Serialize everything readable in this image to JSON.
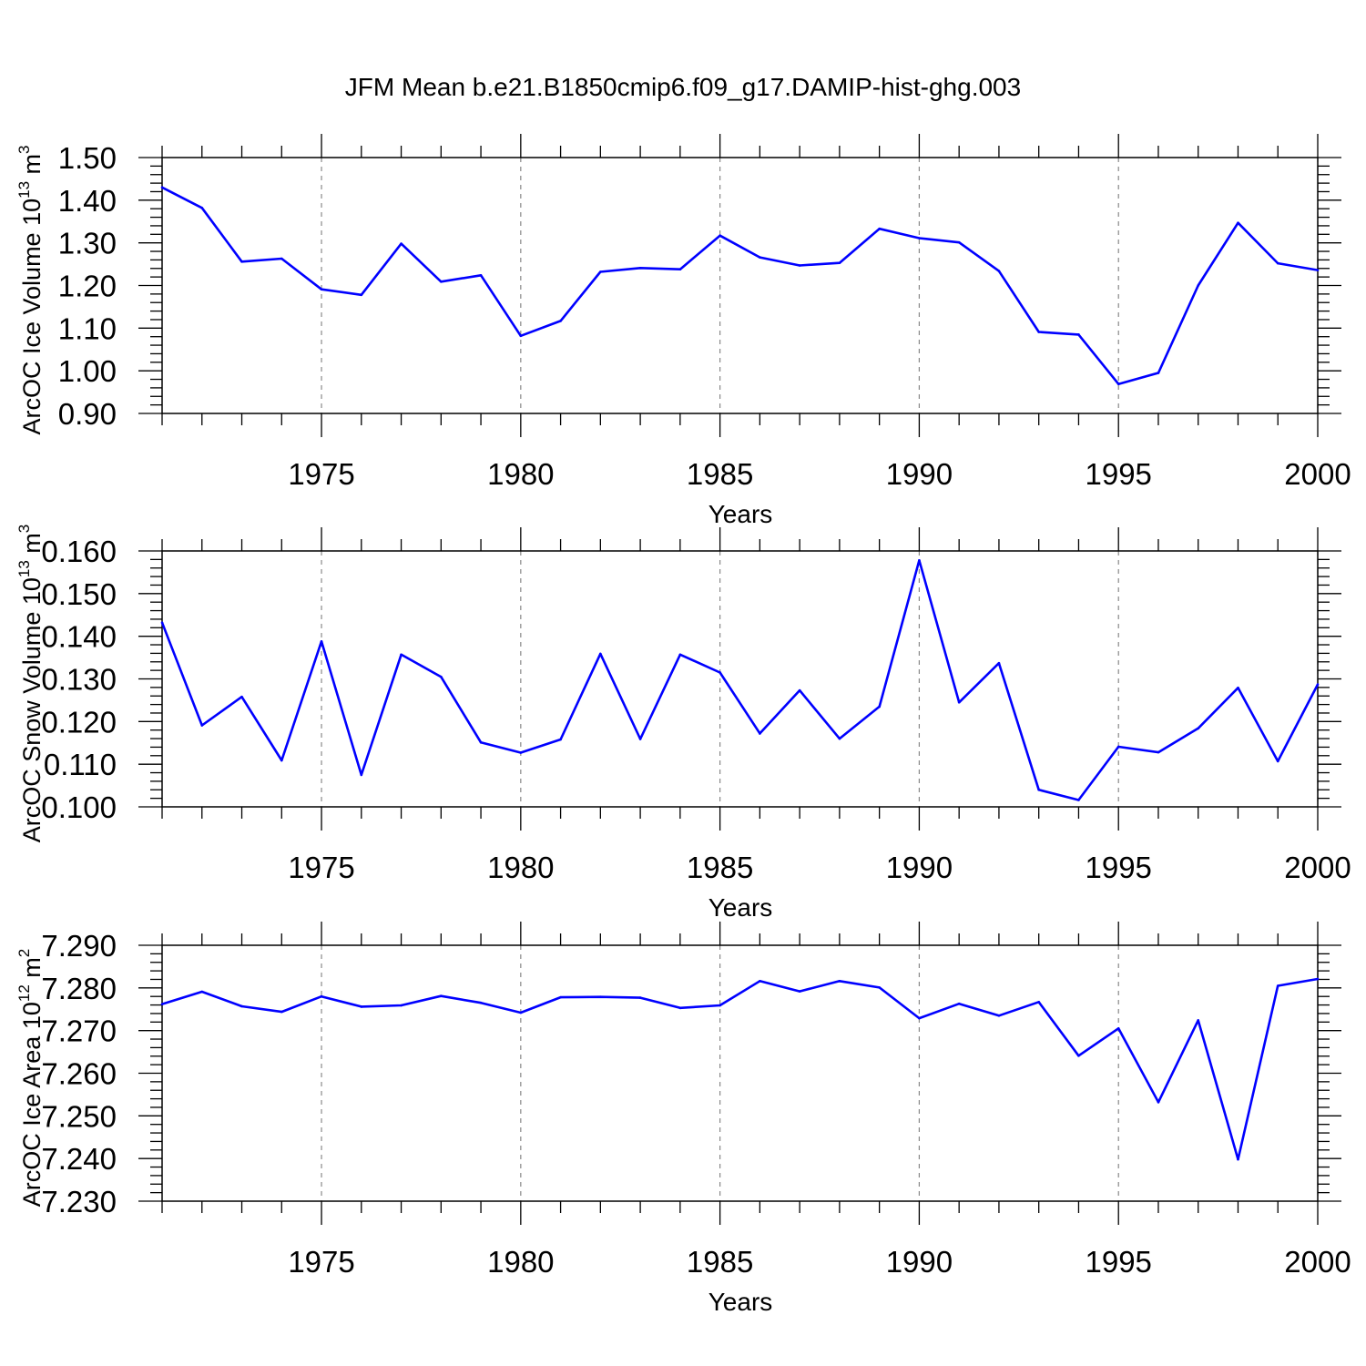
{
  "title": "JFM Mean b.e21.B1850cmip6.f09_g17.DAMIP-hist-ghg.003",
  "line_color": "#0000ff",
  "chart_data": [
    {
      "type": "line",
      "xlabel": "Years",
      "ylabel": "ArcOC Ice Volume 10",
      "ylabel_exp": "13",
      "ylabel_unit": " m",
      "ylabel_unit_exp": "3",
      "xlim": [
        1971,
        2000
      ],
      "ylim": [
        0.9,
        1.5
      ],
      "x_ticks": [
        1975,
        1980,
        1985,
        1990,
        1995,
        2000
      ],
      "x_tick_labels": [
        "1975",
        "1980",
        "1985",
        "1990",
        "1995",
        "2000"
      ],
      "y_ticks": [
        0.9,
        1.0,
        1.1,
        1.2,
        1.3,
        1.4,
        1.5
      ],
      "y_tick_labels": [
        "0.90",
        "1.00",
        "1.10",
        "1.20",
        "1.30",
        "1.40",
        "1.50"
      ],
      "grid": "vertical dashed at major x ticks",
      "x": [
        1971,
        1972,
        1973,
        1974,
        1975,
        1976,
        1977,
        1978,
        1979,
        1980,
        1981,
        1982,
        1983,
        1984,
        1985,
        1986,
        1987,
        1988,
        1989,
        1990,
        1991,
        1992,
        1993,
        1994,
        1995,
        1996,
        1997,
        1998,
        1999,
        2000
      ],
      "values": [
        1.43,
        1.382,
        1.256,
        1.263,
        1.191,
        1.178,
        1.298,
        1.209,
        1.224,
        1.082,
        1.117,
        1.232,
        1.241,
        1.238,
        1.317,
        1.266,
        1.247,
        1.253,
        1.333,
        1.311,
        1.301,
        1.234,
        1.091,
        1.085,
        0.969,
        0.995,
        1.2,
        1.347,
        1.252,
        1.236
      ]
    },
    {
      "type": "line",
      "xlabel": "Years",
      "ylabel": "ArcOC Snow Volume 10",
      "ylabel_exp": "13",
      "ylabel_unit": " m",
      "ylabel_unit_exp": "3",
      "xlim": [
        1971,
        2000
      ],
      "ylim": [
        0.1,
        0.16
      ],
      "x_ticks": [
        1975,
        1980,
        1985,
        1990,
        1995,
        2000
      ],
      "x_tick_labels": [
        "1975",
        "1980",
        "1985",
        "1990",
        "1995",
        "2000"
      ],
      "y_ticks": [
        0.1,
        0.11,
        0.12,
        0.13,
        0.14,
        0.15,
        0.16
      ],
      "y_tick_labels": [
        "0.100",
        "0.110",
        "0.120",
        "0.130",
        "0.140",
        "0.150",
        "0.160"
      ],
      "grid": "vertical dashed at major x ticks",
      "x": [
        1971,
        1972,
        1973,
        1974,
        1975,
        1976,
        1977,
        1978,
        1979,
        1980,
        1981,
        1982,
        1983,
        1984,
        1985,
        1986,
        1987,
        1988,
        1989,
        1990,
        1991,
        1992,
        1993,
        1994,
        1995,
        1996,
        1997,
        1998,
        1999,
        2000
      ],
      "values": [
        0.1432,
        0.1191,
        0.1258,
        0.1109,
        0.1388,
        0.1075,
        0.1357,
        0.1305,
        0.1151,
        0.1127,
        0.1158,
        0.1359,
        0.1159,
        0.1357,
        0.1315,
        0.1172,
        0.1273,
        0.116,
        0.1235,
        0.1578,
        0.1245,
        0.1337,
        0.104,
        0.1016,
        0.1141,
        0.1128,
        0.1184,
        0.1279,
        0.1107,
        0.1287
      ]
    },
    {
      "type": "line",
      "xlabel": "Years",
      "ylabel": "ArcOC Ice Area 10",
      "ylabel_exp": "12",
      "ylabel_unit": " m",
      "ylabel_unit_exp": "2",
      "xlim": [
        1971,
        2000
      ],
      "ylim": [
        7.23,
        7.29
      ],
      "x_ticks": [
        1975,
        1980,
        1985,
        1990,
        1995,
        2000
      ],
      "x_tick_labels": [
        "1975",
        "1980",
        "1985",
        "1990",
        "1995",
        "2000"
      ],
      "y_ticks": [
        7.23,
        7.24,
        7.25,
        7.26,
        7.27,
        7.28,
        7.29
      ],
      "y_tick_labels": [
        "7.230",
        "7.240",
        "7.250",
        "7.260",
        "7.270",
        "7.280",
        "7.290"
      ],
      "grid": "vertical dashed at major x ticks",
      "x": [
        1971,
        1972,
        1973,
        1974,
        1975,
        1976,
        1977,
        1978,
        1979,
        1980,
        1981,
        1982,
        1983,
        1984,
        1985,
        1986,
        1987,
        1988,
        1989,
        1990,
        1991,
        1992,
        1993,
        1994,
        1995,
        1996,
        1997,
        1998,
        1999,
        2000
      ],
      "values": [
        7.2762,
        7.2791,
        7.2757,
        7.2744,
        7.278,
        7.2756,
        7.2759,
        7.2781,
        7.2765,
        7.2742,
        7.2778,
        7.2779,
        7.2777,
        7.2753,
        7.2759,
        7.2816,
        7.2792,
        7.2816,
        7.2801,
        7.2729,
        7.2763,
        7.2735,
        7.2767,
        7.2641,
        7.2705,
        7.2532,
        7.2724,
        7.2398,
        7.2805,
        7.2821
      ]
    }
  ]
}
